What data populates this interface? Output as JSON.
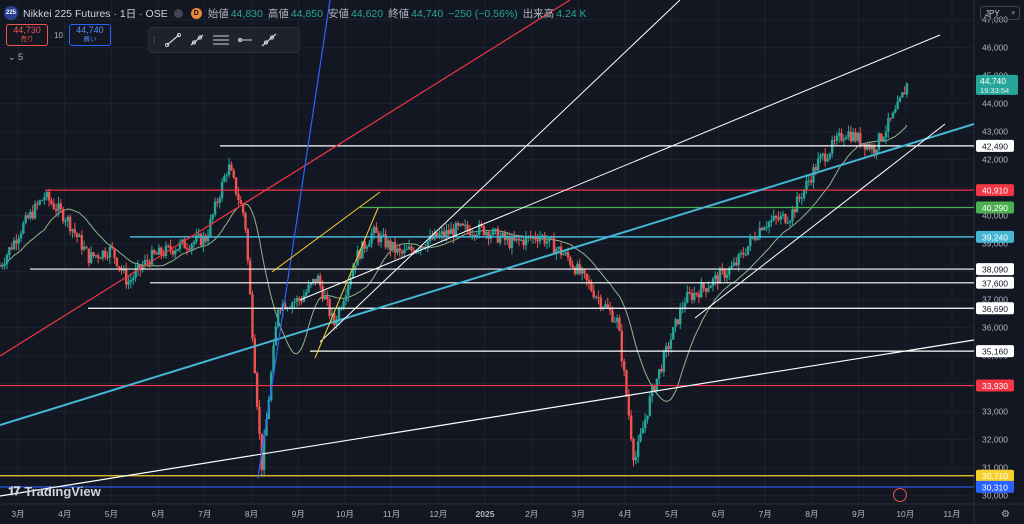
{
  "header": {
    "logo_text": "225",
    "title": "Nikkei 225 Futures · 1日 · OSE",
    "d_badge": "D",
    "ohlc": [
      {
        "k": "始値",
        "v": "44,830"
      },
      {
        "k": "高値",
        "v": "44,850"
      },
      {
        "k": "安値",
        "v": "44,620"
      },
      {
        "k": "終値",
        "v": "44,740"
      },
      {
        "k": "",
        "v": "−250 (−0.56%)"
      },
      {
        "k": "出来高",
        "v": "4.24 K"
      }
    ]
  },
  "trade": {
    "sell_price": "44,730",
    "sell_label": "売り",
    "qty": "10",
    "buy_price": "44,740",
    "buy_label": "買い"
  },
  "indicators_toggle": "5",
  "currency": "JPY",
  "brand": "TradingView",
  "colors": {
    "bg": "#131722",
    "up": "#26a69a",
    "down": "#ef5350",
    "grid": "#1e2230",
    "axis_text": "#b2b5be",
    "white_line": "#ffffff",
    "red_line": "#f23645",
    "green_line": "#4caf50",
    "cyan_line": "#45b6d4",
    "blue_line": "#2962ff",
    "yellow_line": "#f6d12b",
    "ma": "#8fb58a"
  },
  "chart_data": {
    "type": "candlestick",
    "x_axis_labels": [
      "3月",
      "4月",
      "5月",
      "6月",
      "7月",
      "8月",
      "9月",
      "10月",
      "11月",
      "12月",
      "2025",
      "2月",
      "3月",
      "4月",
      "5月",
      "6月",
      "7月",
      "8月",
      "9月",
      "10月",
      "11月"
    ],
    "y_ticks": [
      30000,
      31000,
      32000,
      33000,
      34000,
      35000,
      36000,
      37000,
      38000,
      39000,
      40000,
      41000,
      42000,
      43000,
      44000,
      45000,
      46000,
      47000
    ],
    "ylim": [
      29700,
      47700
    ],
    "last_price": "44,740",
    "countdown": "19:33:54",
    "horizontal_levels": [
      {
        "value": 42490,
        "label": "42,490",
        "color": "white"
      },
      {
        "value": 40910,
        "label": "40,910",
        "color": "red"
      },
      {
        "value": 40290,
        "label": "40,290",
        "color": "green"
      },
      {
        "value": 39240,
        "label": "39,240",
        "color": "cyan"
      },
      {
        "value": 38090,
        "label": "38,090",
        "color": "white"
      },
      {
        "value": 37600,
        "label": "37,600",
        "color": "white"
      },
      {
        "value": 36690,
        "label": "36,690",
        "color": "white"
      },
      {
        "value": 35160,
        "label": "35,160",
        "color": "white"
      },
      {
        "value": 33930,
        "label": "33,930",
        "color": "red"
      },
      {
        "value": 30710,
        "label": "30,710",
        "color": "yellow"
      },
      {
        "value": 30310,
        "label": "30,310",
        "color": "blue"
      }
    ],
    "close_path": [
      [
        2024.13,
        38200
      ],
      [
        2024.17,
        39600
      ],
      [
        2024.21,
        40700
      ],
      [
        2024.25,
        39900
      ],
      [
        2024.29,
        38500
      ],
      [
        2024.33,
        38800
      ],
      [
        2024.36,
        37600
      ],
      [
        2024.4,
        38500
      ],
      [
        2024.45,
        38900
      ],
      [
        2024.5,
        39200
      ],
      [
        2024.54,
        41800
      ],
      [
        2024.57,
        39900
      ],
      [
        2024.6,
        31000
      ],
      [
        2024.63,
        36800
      ],
      [
        2024.67,
        37000
      ],
      [
        2024.7,
        37800
      ],
      [
        2024.73,
        36100
      ],
      [
        2024.77,
        38500
      ],
      [
        2024.8,
        39400
      ],
      [
        2024.85,
        38600
      ],
      [
        2024.9,
        39100
      ],
      [
        2024.95,
        39500
      ],
      [
        2025.0,
        39500
      ],
      [
        2025.05,
        39000
      ],
      [
        2025.1,
        39300
      ],
      [
        2025.15,
        38500
      ],
      [
        2025.2,
        37200
      ],
      [
        2025.24,
        36200
      ],
      [
        2025.27,
        31200
      ],
      [
        2025.3,
        33600
      ],
      [
        2025.36,
        37000
      ],
      [
        2025.4,
        37500
      ],
      [
        2025.45,
        38200
      ],
      [
        2025.5,
        39700
      ],
      [
        2025.55,
        40000
      ],
      [
        2025.6,
        41900
      ],
      [
        2025.65,
        43000
      ],
      [
        2025.7,
        42400
      ],
      [
        2025.74,
        43700
      ],
      [
        2025.76,
        44700
      ]
    ]
  }
}
